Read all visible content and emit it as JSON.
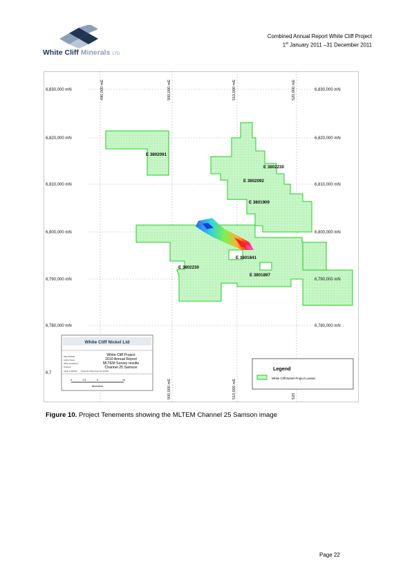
{
  "header": {
    "logo_word1": "White Cliff",
    "logo_word2": "Minerals",
    "logo_word3": "LTD",
    "report_title": "Combined Annual Report White Cliff Project",
    "period_pre": "1",
    "period_sup": "st",
    "period_post": " January 2011 –31 December 2011"
  },
  "map": {
    "northings": [
      "6,830,000 mN",
      "6,820,000 mN",
      "6,810,000 mN",
      "6,800,000 mN",
      "6,790,000 mN",
      "6,780,000 mN"
    ],
    "northing_cut": "6,7",
    "eastings_top": [
      "490,000 mE",
      "500,000 mE",
      "510,000 mE",
      "520,000 mE"
    ],
    "eastings_bottom": [
      "500,000 mE",
      "510,000 mE",
      "520"
    ],
    "tenements": [
      "E 3802091",
      "E 3802230",
      "E 3802092",
      "E 3801909",
      "E 3801841",
      "E 3802230",
      "E 3801897"
    ],
    "colors": {
      "lease_fill": "#c8f7c8",
      "lease_stroke": "#22cc22",
      "grid": "#9a9a9a"
    },
    "title_block": {
      "company": "White Cliff Nickel Ltd",
      "project": "White Cliff Project",
      "report": "2010 Annual Report",
      "survey": "MLTEM Survey results",
      "channel": "Channel 25 Samson",
      "fields": [
        "Date 06/2011",
        "Author Rusty",
        "Office Heathfield",
        "Drawing",
        "Scale 1:250000",
        "Projection MGA Zone 51 GDA94"
      ],
      "scale_ticks": [
        "0",
        "2.5",
        "5",
        "10"
      ],
      "scale_unit": "kilometres"
    },
    "legend": {
      "title": "Legend",
      "item": "White Cliff Nickel Project Leases"
    }
  },
  "caption": {
    "label": "Figure 10.",
    "text": "  Project Tenements showing the MLTEM Channel 25 Samson image"
  },
  "page": {
    "number_text": "Page 22"
  }
}
